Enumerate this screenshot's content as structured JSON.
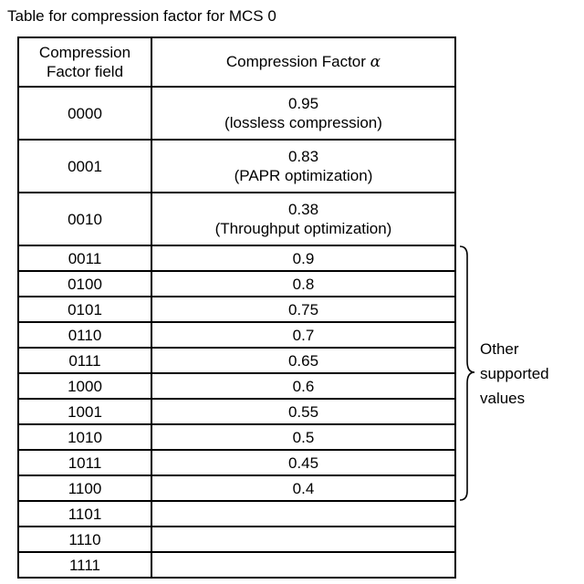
{
  "title": "Table for compression factor for MCS 0",
  "header": {
    "col1_line1": "Compression",
    "col1_line2": "Factor field",
    "col2_prefix": "Compression Factor ",
    "col2_symbol": "α"
  },
  "tall_rows": [
    {
      "field": "0000",
      "value": "0.95",
      "note": "(lossless compression)"
    },
    {
      "field": "0001",
      "value": "0.83",
      "note": "(PAPR optimization)"
    },
    {
      "field": "0010",
      "value": "0.38",
      "note": "(Throughput optimization)"
    }
  ],
  "rows": [
    {
      "field": "0011",
      "value": "0.9"
    },
    {
      "field": "0100",
      "value": "0.8"
    },
    {
      "field": "0101",
      "value": "0.75"
    },
    {
      "field": "0110",
      "value": "0.7"
    },
    {
      "field": "0111",
      "value": "0.65"
    },
    {
      "field": "1000",
      "value": "0.6"
    },
    {
      "field": "1001",
      "value": "0.55"
    },
    {
      "field": "1010",
      "value": "0.5"
    },
    {
      "field": "1011",
      "value": "0.45"
    },
    {
      "field": "1100",
      "value": "0.4"
    },
    {
      "field": "1101",
      "value": ""
    },
    {
      "field": "1110",
      "value": ""
    },
    {
      "field": "1111",
      "value": ""
    }
  ],
  "brace_label": {
    "line1": "Other",
    "line2": "supported",
    "line3": "values"
  }
}
